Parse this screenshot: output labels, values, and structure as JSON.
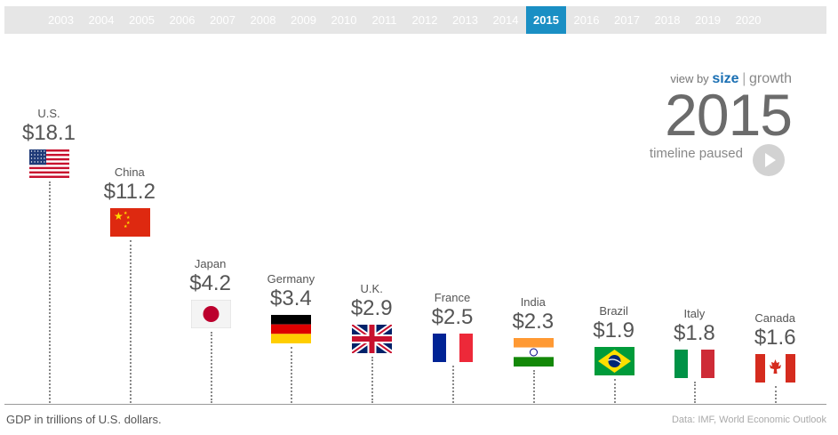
{
  "timeline": {
    "years": [
      "2003",
      "2004",
      "2005",
      "2006",
      "2007",
      "2008",
      "2009",
      "2010",
      "2011",
      "2012",
      "2013",
      "2014",
      "2015",
      "2016",
      "2017",
      "2018",
      "2019",
      "2020"
    ],
    "active": "2015"
  },
  "view_by": {
    "label": "view by",
    "size": "size",
    "separator": "|",
    "growth": "growth"
  },
  "current_year": "2015",
  "timeline_status": "timeline paused",
  "chart_data": {
    "type": "bar",
    "categories": [
      "U.S.",
      "China",
      "Japan",
      "Germany",
      "U.K.",
      "France",
      "India",
      "Brazil",
      "Italy",
      "Canada"
    ],
    "values": [
      18.1,
      11.2,
      4.2,
      3.4,
      2.9,
      2.5,
      2.3,
      1.9,
      1.8,
      1.6
    ],
    "value_labels": [
      "$18.1",
      "$11.2",
      "$4.2",
      "$3.4",
      "$2.9",
      "$2.5",
      "$2.3",
      "$1.9",
      "$1.8",
      "$1.6"
    ],
    "flags": [
      "us-flag",
      "china-flag",
      "japan-flag",
      "germany-flag",
      "uk-flag",
      "france-flag",
      "india-flag",
      "brazil-flag",
      "italy-flag",
      "canada-flag"
    ],
    "year": "2015",
    "ylim": [
      0,
      18.1
    ]
  },
  "footer": {
    "axis_note": "GDP in trillions of U.S. dollars.",
    "source": "Data: IMF, World Economic Outlook"
  },
  "colors": {
    "accent": "#1a8fc4",
    "timeline_bg": "#e6e6e6"
  }
}
